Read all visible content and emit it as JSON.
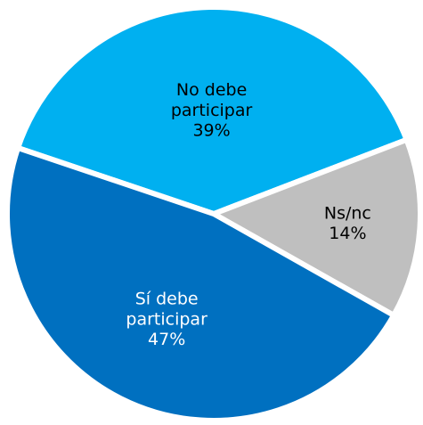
{
  "chart_data": {
    "type": "pie",
    "categories": [
      "No debe participar",
      "Ns/nc",
      "Sí debe participar"
    ],
    "values": [
      39,
      14,
      47
    ],
    "value_labels": [
      "39%",
      "14%",
      "47%"
    ],
    "colors": [
      "#00b0f0",
      "#bfbfbf",
      "#0070c0"
    ]
  }
}
